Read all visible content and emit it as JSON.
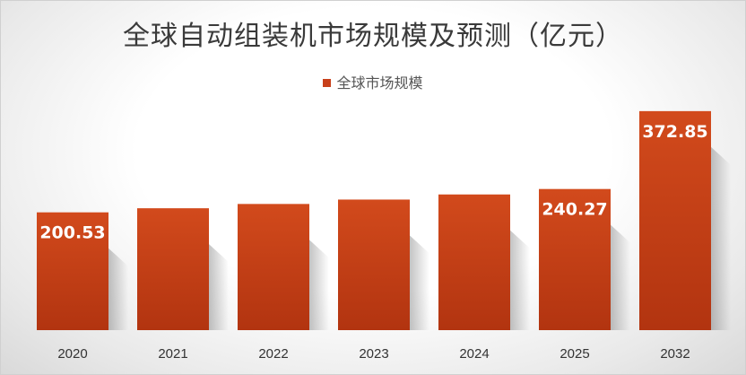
{
  "chart_data": {
    "type": "bar",
    "title": "全球自动组装机市场规模及预测（亿元）",
    "legend": [
      "全球市场规模"
    ],
    "categories": [
      "2020",
      "2021",
      "2022",
      "2023",
      "2024",
      "2025",
      "2032"
    ],
    "values": [
      200.53,
      207.5,
      214.8,
      222.3,
      231.0,
      240.27,
      372.85
    ],
    "data_labels": [
      "200.53",
      "",
      "",
      "",
      "",
      "240.27",
      "372.85"
    ],
    "ylim": [
      0,
      420
    ],
    "xlabel": "",
    "ylabel": "",
    "grid": false,
    "legend_position": "top"
  },
  "colors": {
    "bar_top": "#d24a1c",
    "bar_bottom": "#b23410",
    "legend": "#c8401a"
  }
}
